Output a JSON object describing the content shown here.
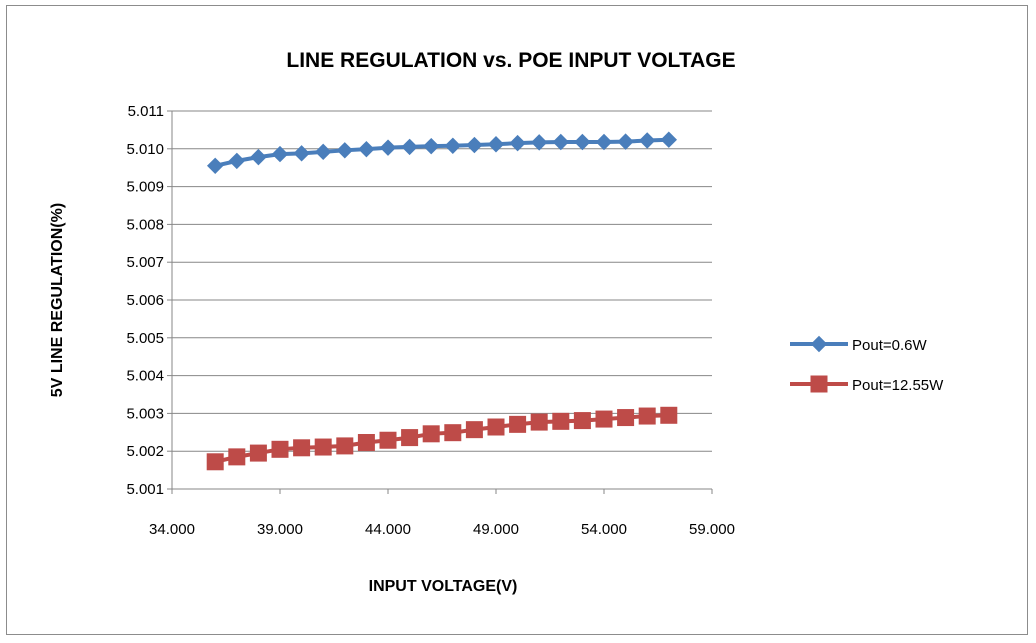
{
  "chart_data": {
    "type": "line",
    "title": "LINE REGULATION vs. POE INPUT VOLTAGE",
    "xlabel": "INPUT VOLTAGE(V)",
    "ylabel": "5V LINE REGULATION(%)",
    "xlim": [
      34,
      59
    ],
    "ylim": [
      5.001,
      5.011
    ],
    "x_ticks": [
      "34.000",
      "39.000",
      "44.000",
      "49.000",
      "54.000",
      "59.000"
    ],
    "y_ticks": [
      "5.001",
      "5.002",
      "5.003",
      "5.004",
      "5.005",
      "5.006",
      "5.007",
      "5.008",
      "5.009",
      "5.010",
      "5.011"
    ],
    "grid": "horizontal",
    "legend_position": "right",
    "x": [
      36,
      37,
      38,
      39,
      40,
      41,
      42,
      43,
      44,
      45,
      46,
      47,
      48,
      49,
      50,
      51,
      52,
      53,
      54,
      55,
      56,
      57
    ],
    "series": [
      {
        "name": "Pout=0.6W",
        "color": "#4a7ebb",
        "marker": "diamond",
        "values": [
          5.00955,
          5.00968,
          5.00978,
          5.00986,
          5.00988,
          5.00992,
          5.00996,
          5.00999,
          5.01003,
          5.01005,
          5.01007,
          5.01008,
          5.0101,
          5.01012,
          5.01015,
          5.01017,
          5.01018,
          5.01018,
          5.01018,
          5.01019,
          5.01022,
          5.01024
        ]
      },
      {
        "name": "Pout=12.55W",
        "color": "#be4b48",
        "marker": "square",
        "values": [
          5.00172,
          5.00185,
          5.00195,
          5.00205,
          5.00209,
          5.00211,
          5.00214,
          5.00223,
          5.00229,
          5.00236,
          5.00246,
          5.00249,
          5.00257,
          5.00264,
          5.00271,
          5.00277,
          5.00279,
          5.00281,
          5.00285,
          5.00289,
          5.00293,
          5.00295
        ]
      }
    ]
  }
}
